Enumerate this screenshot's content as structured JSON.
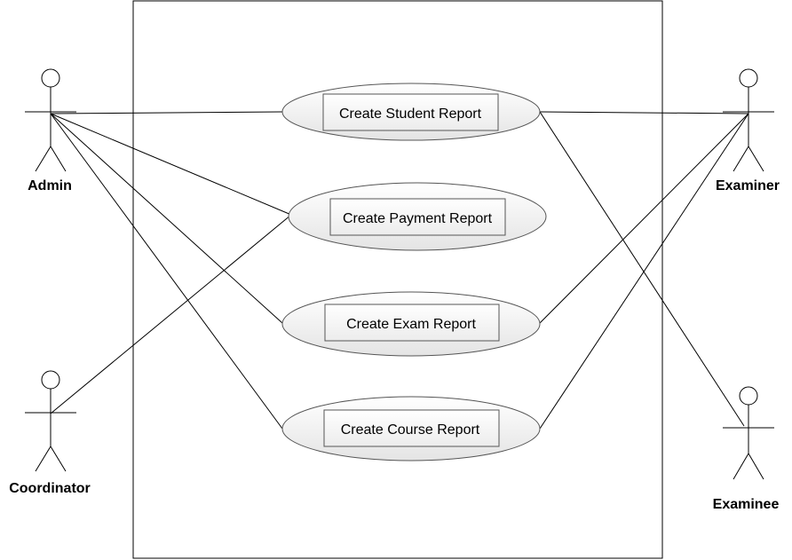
{
  "diagram": {
    "type": "uml-use-case",
    "use_cases": [
      {
        "id": "student",
        "label": "Create Student Report"
      },
      {
        "id": "payment",
        "label": "Create Payment Report"
      },
      {
        "id": "exam",
        "label": "Create Exam Report"
      },
      {
        "id": "course",
        "label": "Create Course Report"
      }
    ],
    "actors": [
      {
        "id": "admin",
        "label": "Admin"
      },
      {
        "id": "coordinator",
        "label": "Coordinator"
      },
      {
        "id": "examiner",
        "label": "Examiner"
      },
      {
        "id": "examinee",
        "label": "Examinee"
      }
    ],
    "associations": [
      {
        "actor": "admin",
        "use_case": "student"
      },
      {
        "actor": "admin",
        "use_case": "payment"
      },
      {
        "actor": "admin",
        "use_case": "exam"
      },
      {
        "actor": "admin",
        "use_case": "course"
      },
      {
        "actor": "coordinator",
        "use_case": "payment"
      },
      {
        "actor": "examiner",
        "use_case": "student"
      },
      {
        "actor": "examiner",
        "use_case": "exam"
      },
      {
        "actor": "examiner",
        "use_case": "course"
      },
      {
        "actor": "examinee",
        "use_case": "student"
      }
    ],
    "colors": {
      "stroke": "#000000",
      "ellipse_fill_top": "#ffffff",
      "ellipse_fill_bottom": "#e4e4e4",
      "ellipse_stroke": "#555555"
    }
  }
}
